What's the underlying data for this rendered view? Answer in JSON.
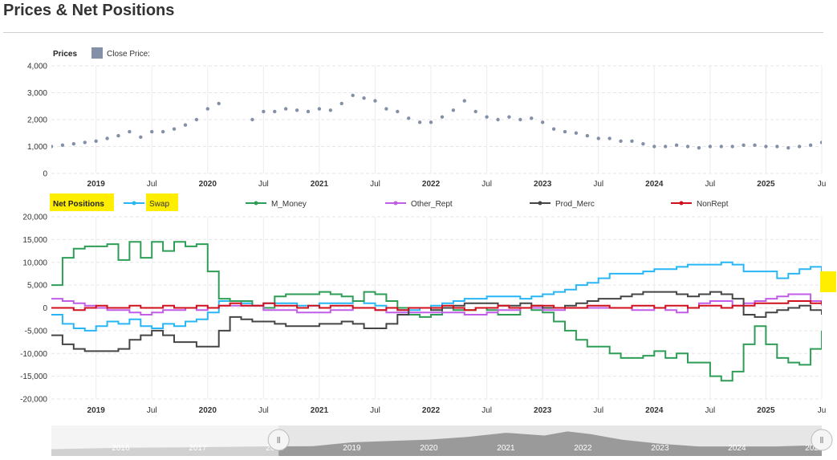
{
  "page": {
    "title": "Prices & Net Positions"
  },
  "prices_legend": {
    "title": "Prices",
    "series_label": "Close Price:",
    "color": "#8490a8"
  },
  "positions_legend": {
    "title": "Net Positions",
    "highlight_color": "#ffee00",
    "items": [
      {
        "label": "Swap",
        "color": "#29b6f6",
        "highlighted": true
      },
      {
        "label": "M_Money",
        "color": "#2e9e57"
      },
      {
        "label": "Other_Rept",
        "color": "#c05ee8"
      },
      {
        "label": "Prod_Merc",
        "color": "#454545"
      },
      {
        "label": "NonRept",
        "color": "#d0101d"
      }
    ]
  },
  "x_ticks": [
    {
      "label": "2019",
      "x": 2019.0,
      "bold": true
    },
    {
      "label": "Jul",
      "x": 2019.5,
      "bold": false
    },
    {
      "label": "2020",
      "x": 2020.0,
      "bold": true
    },
    {
      "label": "Jul",
      "x": 2020.5,
      "bold": false
    },
    {
      "label": "2021",
      "x": 2021.0,
      "bold": true
    },
    {
      "label": "Jul",
      "x": 2021.5,
      "bold": false
    },
    {
      "label": "2022",
      "x": 2022.0,
      "bold": true
    },
    {
      "label": "Jul",
      "x": 2022.5,
      "bold": false
    },
    {
      "label": "2023",
      "x": 2023.0,
      "bold": true
    },
    {
      "label": "Jul",
      "x": 2023.5,
      "bold": false
    },
    {
      "label": "2024",
      "x": 2024.0,
      "bold": true
    },
    {
      "label": "Jul",
      "x": 2024.5,
      "bold": false
    },
    {
      "label": "2025",
      "x": 2025.0,
      "bold": true
    },
    {
      "label": "Ju",
      "x": 2025.5,
      "bold": false
    }
  ],
  "navigator": {
    "labels": [
      "2016",
      "2017",
      "2018",
      "2019",
      "2020",
      "2021",
      "2022",
      "2023",
      "2024",
      "2025"
    ],
    "range": [
      2015.6,
      2025.6
    ],
    "selected": [
      2018.55,
      2025.6
    ],
    "handle_glyph": "Ⅱ",
    "profile": [
      [
        2015.6,
        0.25
      ],
      [
        2016.5,
        0.3
      ],
      [
        2017.5,
        0.32
      ],
      [
        2018.3,
        0.35
      ],
      [
        2019.0,
        0.36
      ],
      [
        2019.5,
        0.5
      ],
      [
        2020.0,
        0.55
      ],
      [
        2020.5,
        0.6
      ],
      [
        2021.0,
        0.7
      ],
      [
        2021.5,
        0.85
      ],
      [
        2022.0,
        0.75
      ],
      [
        2022.3,
        0.9
      ],
      [
        2022.6,
        0.8
      ],
      [
        2023.0,
        0.6
      ],
      [
        2023.5,
        0.45
      ],
      [
        2024.0,
        0.35
      ],
      [
        2024.5,
        0.35
      ],
      [
        2025.0,
        0.35
      ],
      [
        2025.6,
        0.4
      ]
    ]
  },
  "chart_data": [
    {
      "type": "scatter",
      "title": "Prices",
      "series": [
        {
          "name": "Close Price:"
        }
      ],
      "x_unit": "year",
      "xlim": [
        2018.6,
        2025.5
      ],
      "ylim": [
        0,
        4000
      ],
      "y_ticks": [
        0,
        1000,
        2000,
        3000,
        4000
      ],
      "grid": true,
      "legend": "top-left",
      "x": [
        2018.6,
        2018.7,
        2018.8,
        2018.9,
        2019.0,
        2019.1,
        2019.2,
        2019.3,
        2019.4,
        2019.5,
        2019.6,
        2019.7,
        2019.8,
        2019.9,
        2020.0,
        2020.1,
        2020.2,
        2020.3,
        2020.4,
        2020.5,
        2020.6,
        2020.7,
        2020.8,
        2020.9,
        2021.0,
        2021.1,
        2021.2,
        2021.3,
        2021.4,
        2021.5,
        2021.6,
        2021.7,
        2021.8,
        2021.9,
        2022.0,
        2022.1,
        2022.2,
        2022.3,
        2022.4,
        2022.5,
        2022.6,
        2022.7,
        2022.8,
        2022.9,
        2023.0,
        2023.1,
        2023.2,
        2023.3,
        2023.4,
        2023.5,
        2023.6,
        2023.7,
        2023.8,
        2023.9,
        2024.0,
        2024.1,
        2024.2,
        2024.3,
        2024.4,
        2024.5,
        2024.6,
        2024.7,
        2024.8,
        2024.9,
        2025.0,
        2025.1,
        2025.2,
        2025.3,
        2025.4,
        2025.5
      ],
      "y": [
        1000,
        1050,
        1100,
        1150,
        1200,
        1300,
        1400,
        1550,
        1350,
        1550,
        1550,
        1650,
        1800,
        2000,
        2400,
        2600,
        null,
        null,
        2000,
        2300,
        2300,
        2400,
        2350,
        2300,
        2400,
        2350,
        2600,
        2900,
        2800,
        2700,
        2400,
        2300,
        2050,
        1900,
        1900,
        2100,
        2350,
        2700,
        2300,
        2100,
        2000,
        2100,
        2000,
        2050,
        1900,
        1650,
        1550,
        1500,
        1400,
        1300,
        1300,
        1200,
        1200,
        1100,
        1000,
        1000,
        1050,
        1000,
        950,
        1000,
        1000,
        1000,
        1050,
        1050,
        1000,
        1000,
        950,
        1000,
        1050,
        1150
      ]
    },
    {
      "type": "line",
      "title": "Net Positions",
      "x_unit": "year",
      "xlim": [
        2018.6,
        2025.5
      ],
      "ylim": [
        -20000,
        20000
      ],
      "y_ticks": [
        -20000,
        -15000,
        -10000,
        -5000,
        0,
        5000,
        10000,
        15000,
        20000
      ],
      "grid": true,
      "legend": "top",
      "x": [
        2018.6,
        2018.7,
        2018.8,
        2018.9,
        2019.0,
        2019.1,
        2019.2,
        2019.3,
        2019.4,
        2019.5,
        2019.6,
        2019.7,
        2019.8,
        2019.9,
        2020.0,
        2020.1,
        2020.2,
        2020.3,
        2020.4,
        2020.5,
        2020.6,
        2020.7,
        2020.8,
        2020.9,
        2021.0,
        2021.1,
        2021.2,
        2021.3,
        2021.4,
        2021.5,
        2021.6,
        2021.7,
        2021.8,
        2021.9,
        2022.0,
        2022.1,
        2022.2,
        2022.3,
        2022.4,
        2022.5,
        2022.6,
        2022.7,
        2022.8,
        2022.9,
        2023.0,
        2023.1,
        2023.2,
        2023.3,
        2023.4,
        2023.5,
        2023.6,
        2023.7,
        2023.8,
        2023.9,
        2024.0,
        2024.1,
        2024.2,
        2024.3,
        2024.4,
        2024.5,
        2024.6,
        2024.7,
        2024.8,
        2024.9,
        2025.0,
        2025.1,
        2025.2,
        2025.3,
        2025.4,
        2025.5
      ],
      "series": [
        {
          "name": "Swap",
          "values": [
            -1500,
            -3500,
            -4500,
            -5000,
            -4000,
            -3000,
            -3500,
            -2500,
            -4000,
            -4500,
            -3500,
            -4000,
            -3000,
            -2500,
            -1000,
            1500,
            1500,
            1000,
            500,
            1000,
            1000,
            1000,
            500,
            500,
            1000,
            1000,
            1000,
            1500,
            1000,
            500,
            0,
            -500,
            -500,
            0,
            500,
            1000,
            1500,
            2000,
            2000,
            2500,
            2500,
            2500,
            2000,
            2500,
            3000,
            3500,
            4000,
            5000,
            5500,
            6500,
            7500,
            7500,
            7500,
            8000,
            8500,
            8500,
            9000,
            9500,
            9500,
            9500,
            10000,
            9500,
            8000,
            8000,
            8000,
            6500,
            7500,
            8500,
            9000,
            6000
          ]
        },
        {
          "name": "M_Money",
          "values": [
            5000,
            11000,
            13000,
            13500,
            13500,
            14000,
            10500,
            14500,
            11000,
            14500,
            12500,
            14500,
            13500,
            14000,
            8000,
            2000,
            1500,
            1500,
            500,
            0,
            2500,
            3000,
            3000,
            3000,
            3500,
            3000,
            2500,
            1500,
            3500,
            3000,
            1500,
            0,
            -1500,
            -2000,
            -1500,
            0,
            -500,
            -500,
            0,
            -500,
            -1500,
            -1500,
            0,
            -500,
            -1000,
            -3000,
            -5000,
            -7000,
            -8500,
            -8500,
            -10000,
            -11000,
            -11000,
            -10500,
            -9500,
            -11000,
            -10000,
            -12000,
            -12000,
            -15000,
            -16000,
            -14000,
            -8000,
            -4000,
            -8000,
            -11000,
            -12000,
            -12500,
            -9000,
            -5000
          ]
        },
        {
          "name": "Other_Rept",
          "values": [
            2000,
            1500,
            1000,
            500,
            0,
            -500,
            -500,
            -1000,
            -1500,
            -1000,
            -500,
            -500,
            0,
            -500,
            0,
            500,
            500,
            500,
            500,
            -500,
            -500,
            -500,
            -1000,
            -1000,
            -1000,
            -500,
            -500,
            0,
            0,
            -500,
            -1000,
            -1000,
            -1000,
            -1000,
            -1000,
            -1000,
            -1000,
            -1500,
            -1500,
            -1000,
            -500,
            -500,
            0,
            0,
            -500,
            -500,
            0,
            0,
            0,
            0,
            0,
            0,
            -500,
            -500,
            0,
            -500,
            -1000,
            0,
            1000,
            1500,
            1500,
            500,
            1000,
            1500,
            2000,
            2500,
            3000,
            3000,
            1500,
            500
          ]
        },
        {
          "name": "Prod_Merc",
          "values": [
            -6000,
            -8000,
            -9000,
            -9500,
            -9500,
            -9500,
            -9000,
            -7000,
            -6000,
            -5000,
            -6000,
            -7500,
            -7500,
            -8500,
            -8500,
            -5000,
            -2000,
            -2500,
            -3000,
            -3000,
            -3500,
            -4000,
            -4000,
            -4000,
            -3500,
            -3500,
            -3000,
            -3500,
            -4500,
            -4500,
            -3500,
            -1500,
            0,
            0,
            -500,
            0,
            500,
            1000,
            1000,
            1000,
            500,
            500,
            1000,
            500,
            0,
            0,
            500,
            1000,
            1500,
            2000,
            2000,
            2500,
            3000,
            3500,
            3500,
            3500,
            3000,
            2500,
            3000,
            3500,
            3000,
            2000,
            -1500,
            -2000,
            -1000,
            -500,
            0,
            500,
            -500,
            -1500
          ]
        },
        {
          "name": "NonRept",
          "values": [
            0,
            0,
            -500,
            0,
            500,
            0,
            0,
            500,
            0,
            0,
            500,
            0,
            0,
            500,
            0,
            500,
            1000,
            500,
            500,
            1000,
            500,
            500,
            0,
            500,
            0,
            500,
            500,
            0,
            0,
            -500,
            0,
            -500,
            0,
            0,
            0,
            500,
            0,
            -500,
            0,
            0,
            500,
            0,
            0,
            500,
            500,
            0,
            0,
            0,
            500,
            500,
            0,
            0,
            500,
            500,
            0,
            500,
            500,
            0,
            500,
            500,
            0,
            500,
            500,
            1000,
            1000,
            1000,
            1500,
            1500,
            1000,
            1500
          ]
        }
      ]
    }
  ]
}
